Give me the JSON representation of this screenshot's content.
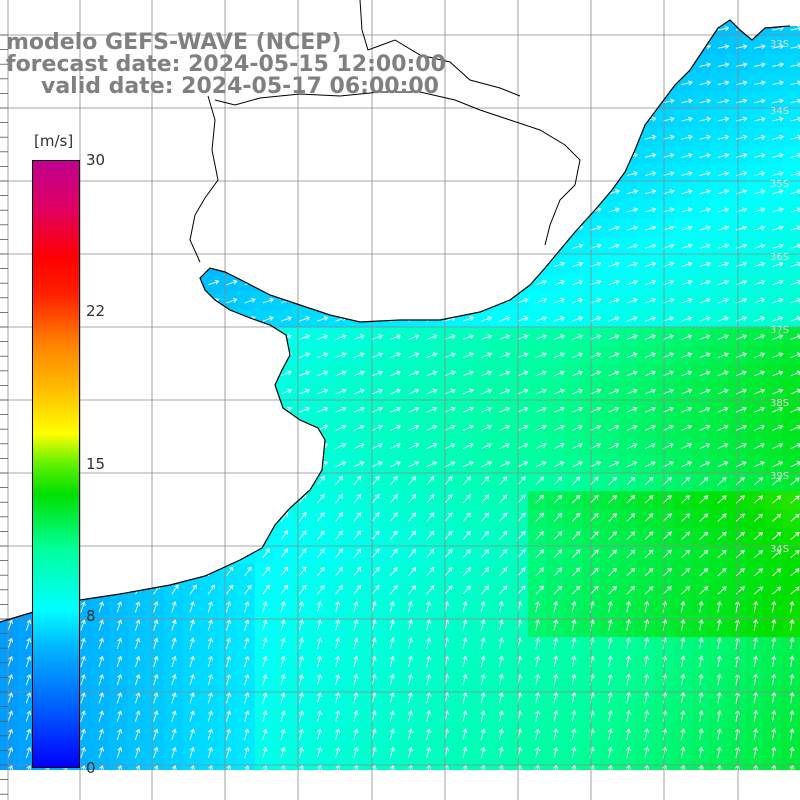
{
  "title": {
    "line1": "modelo GEFS-WAVE (NCEP)",
    "line2": "forecast date: 2024-05-15 12:00:00",
    "line3": "valid date: 2024-05-17 06:00:00"
  },
  "colorbar": {
    "unit": "[m/s]",
    "ticks": [
      "30",
      "22",
      "15",
      "8",
      "0"
    ],
    "tick_values": [
      30,
      22,
      15,
      8,
      0
    ],
    "min": 0,
    "max": 30
  },
  "lat_labels": [
    "33S",
    "34S",
    "35S",
    "36S",
    "37S",
    "38S",
    "39S",
    "34S"
  ],
  "colors": {
    "land": "#ffffff",
    "grid": "#8a8a8a",
    "coast": "#000000",
    "arrow": "#ffffff",
    "title": "#808080"
  }
}
